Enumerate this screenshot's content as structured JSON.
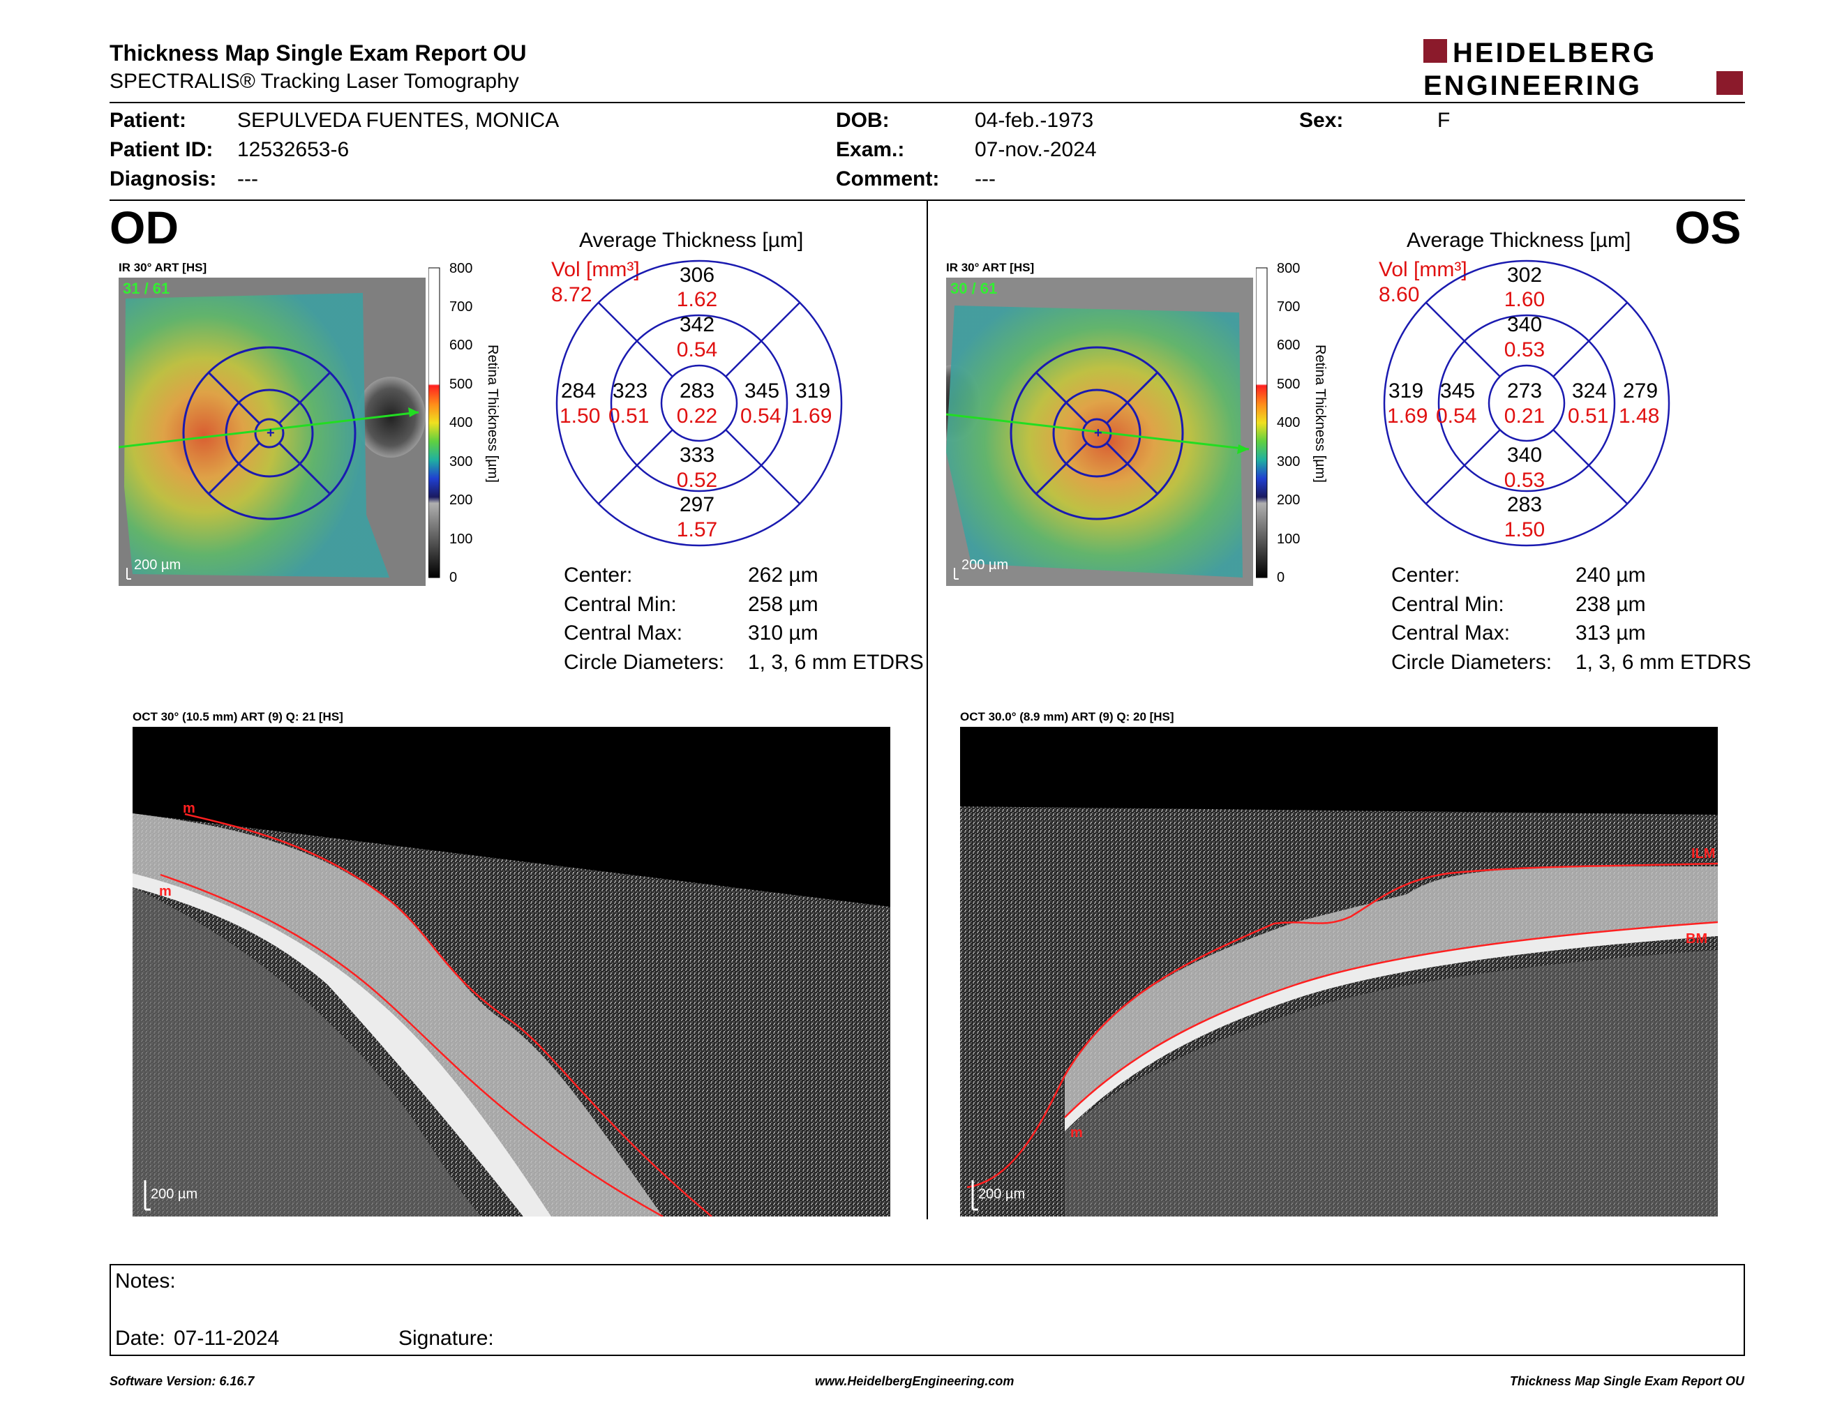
{
  "header": {
    "title": "Thickness Map Single Exam Report OU",
    "subtitle": "SPECTRALIS® Tracking Laser Tomography",
    "logo_line1": "HEIDELBERG",
    "logo_line2": "ENGINEERING",
    "logo_color": "#8b1a2b"
  },
  "patient": {
    "patient_label": "Patient:",
    "patient_value": "SEPULVEDA FUENTES, MONICA",
    "id_label": "Patient ID:",
    "id_value": "12532653-6",
    "diagnosis_label": "Diagnosis:",
    "diagnosis_value": "---",
    "dob_label": "DOB:",
    "dob_value": "04-feb.-1973",
    "exam_label": "Exam.:",
    "exam_value": "07-nov.-2024",
    "comment_label": "Comment:",
    "comment_value": "---",
    "sex_label": "Sex:",
    "sex_value": "F"
  },
  "scale": {
    "ticks": [
      "800",
      "700",
      "600",
      "500",
      "400",
      "300",
      "200",
      "100",
      "0"
    ],
    "title": "Retina Thickness [µm]"
  },
  "od": {
    "eye": "OD",
    "ir_label": "IR 30° ART [HS]",
    "frames": "31 / 61",
    "scalebar": "200 µm",
    "avg_title": "Average Thickness [µm]",
    "vol_label": "Vol [mm³]",
    "vol_value": "8.72",
    "sectors": {
      "outer_top": {
        "t": "306",
        "v": "1.62"
      },
      "inner_top": {
        "t": "342",
        "v": "0.54"
      },
      "outer_left": {
        "t": "284",
        "v": "1.50"
      },
      "inner_left": {
        "t": "323",
        "v": "0.51"
      },
      "center": {
        "t": "283",
        "v": "0.22"
      },
      "inner_right": {
        "t": "345",
        "v": "0.54"
      },
      "outer_right": {
        "t": "319",
        "v": "1.69"
      },
      "inner_bottom": {
        "t": "333",
        "v": "0.52"
      },
      "outer_bottom": {
        "t": "297",
        "v": "1.57"
      }
    },
    "stats": {
      "center_label": "Center:",
      "center_value": "262 µm",
      "min_label": "Central Min:",
      "min_value": "258 µm",
      "max_label": "Central Max:",
      "max_value": "310 µm",
      "diam_label": "Circle Diameters:",
      "diam_value": "1, 3, 6 mm ETDRS"
    },
    "oct_label": "OCT 30° (10.5 mm) ART (9) Q: 21 [HS]",
    "oct_scalebar": "200 µm",
    "layer_marks": [
      "m",
      "m"
    ]
  },
  "os": {
    "eye": "OS",
    "ir_label": "IR 30° ART [HS]",
    "frames": "30 / 61",
    "scalebar": "200 µm",
    "avg_title": "Average Thickness [µm]",
    "vol_label": "Vol [mm³]",
    "vol_value": "8.60",
    "sectors": {
      "outer_top": {
        "t": "302",
        "v": "1.60"
      },
      "inner_top": {
        "t": "340",
        "v": "0.53"
      },
      "outer_left": {
        "t": "319",
        "v": "1.69"
      },
      "inner_left": {
        "t": "345",
        "v": "0.54"
      },
      "center": {
        "t": "273",
        "v": "0.21"
      },
      "inner_right": {
        "t": "324",
        "v": "0.51"
      },
      "outer_right": {
        "t": "279",
        "v": "1.48"
      },
      "inner_bottom": {
        "t": "340",
        "v": "0.53"
      },
      "outer_bottom": {
        "t": "283",
        "v": "1.50"
      }
    },
    "stats": {
      "center_label": "Center:",
      "center_value": "240 µm",
      "min_label": "Central Min:",
      "min_value": "238 µm",
      "max_label": "Central Max:",
      "max_value": "313 µm",
      "diam_label": "Circle Diameters:",
      "diam_value": "1, 3, 6 mm ETDRS"
    },
    "oct_label": "OCT 30.0° (8.9 mm) ART (9) Q: 20 [HS]",
    "oct_scalebar": "200 µm",
    "layer_marks": [
      "ILM",
      "BM",
      "m"
    ]
  },
  "notes": {
    "notes_label": "Notes:",
    "date_label": "Date:",
    "date_value": "07-11-2024",
    "signature_label": "Signature:"
  },
  "footer": {
    "software": "Software Version: 6.16.7",
    "website": "www.HeidelbergEngineering.com",
    "report": "Thickness Map Single Exam Report OU"
  }
}
